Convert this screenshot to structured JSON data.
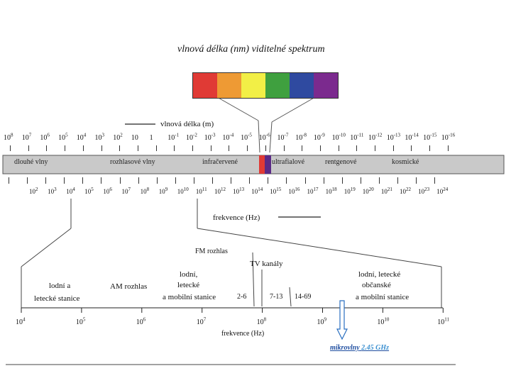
{
  "visible_spectrum": {
    "title": "vlnová délka (nm) viditelné spektrum",
    "colors": [
      "#e03a35",
      "#ee9a34",
      "#f2ef46",
      "#3fa03f",
      "#2f4aa0",
      "#7b2a8e"
    ]
  },
  "wavelength_scale": {
    "label": "vlnová délka (m)",
    "ticks": [
      {
        "b": "10",
        "e": "8"
      },
      {
        "b": "10",
        "e": "7"
      },
      {
        "b": "10",
        "e": "6"
      },
      {
        "b": "10",
        "e": "5"
      },
      {
        "b": "10",
        "e": "4"
      },
      {
        "b": "10",
        "e": "3"
      },
      {
        "b": "10",
        "e": "2"
      },
      {
        "b": "10",
        "e": ""
      },
      {
        "b": "1",
        "e": ""
      },
      {
        "b": "10",
        "e": "-1"
      },
      {
        "b": "10",
        "e": "-2"
      },
      {
        "b": "10",
        "e": "-3"
      },
      {
        "b": "10",
        "e": "-4"
      },
      {
        "b": "10",
        "e": "-5"
      },
      {
        "b": "10",
        "e": "-6"
      },
      {
        "b": "10",
        "e": "-7"
      },
      {
        "b": "10",
        "e": "-8"
      },
      {
        "b": "10",
        "e": "-9"
      },
      {
        "b": "10",
        "e": "-10"
      },
      {
        "b": "10",
        "e": "-11"
      },
      {
        "b": "10",
        "e": "-12"
      },
      {
        "b": "10",
        "e": "-13"
      },
      {
        "b": "10",
        "e": "-14"
      },
      {
        "b": "10",
        "e": "-15"
      },
      {
        "b": "10",
        "e": "-16"
      }
    ]
  },
  "band": {
    "labels": [
      "dlouhé vlny",
      "rozhlasové vlny",
      "infračervené",
      "ultrafialové",
      "rentgenové",
      "kosmické"
    ]
  },
  "frequency_scale": {
    "label": "frekvence (Hz)",
    "ticks": [
      {
        "b": "10",
        "e": "2"
      },
      {
        "b": "10",
        "e": "3"
      },
      {
        "b": "10",
        "e": "4"
      },
      {
        "b": "10",
        "e": "5"
      },
      {
        "b": "10",
        "e": "6"
      },
      {
        "b": "10",
        "e": "7"
      },
      {
        "b": "10",
        "e": "8"
      },
      {
        "b": "10",
        "e": "9"
      },
      {
        "b": "10",
        "e": "10"
      },
      {
        "b": "10",
        "e": "11"
      },
      {
        "b": "10",
        "e": "12"
      },
      {
        "b": "10",
        "e": "13"
      },
      {
        "b": "10",
        "e": "14"
      },
      {
        "b": "10",
        "e": "15"
      },
      {
        "b": "10",
        "e": "16"
      },
      {
        "b": "10",
        "e": "17"
      },
      {
        "b": "10",
        "e": "18"
      },
      {
        "b": "10",
        "e": "19"
      },
      {
        "b": "10",
        "e": "20"
      },
      {
        "b": "10",
        "e": "21"
      },
      {
        "b": "10",
        "e": "22"
      },
      {
        "b": "10",
        "e": "23"
      },
      {
        "b": "10",
        "e": "24"
      }
    ]
  },
  "zoom": {
    "fm_label": "FM rozhlas",
    "tv_label": "TV kanály",
    "ship_line1": "lodní a",
    "ship_line2": "letecké stanice",
    "am_label": "AM rozhlas",
    "mobile_line1": "lodní,",
    "mobile_line2": "letecké",
    "mobile_line3": "a mobilní stanice",
    "ch_26": "2-6",
    "ch_713": "7-13",
    "ch_1469": "14-69",
    "civil_line1": "lodní, letecké",
    "civil_line2": "občanské",
    "civil_line3": "a mobilní stanice",
    "axis_label": "frekvence (Hz)",
    "ticks": [
      {
        "b": "10",
        "e": "4"
      },
      {
        "b": "10",
        "e": "5"
      },
      {
        "b": "10",
        "e": "6"
      },
      {
        "b": "10",
        "e": "7"
      },
      {
        "b": "10",
        "e": "8"
      },
      {
        "b": "10",
        "e": "9"
      },
      {
        "b": "10",
        "e": "10"
      },
      {
        "b": "10",
        "e": "11"
      }
    ],
    "microwave_label": "mikrovlny",
    "microwave_freq": "2.45 GHz"
  }
}
